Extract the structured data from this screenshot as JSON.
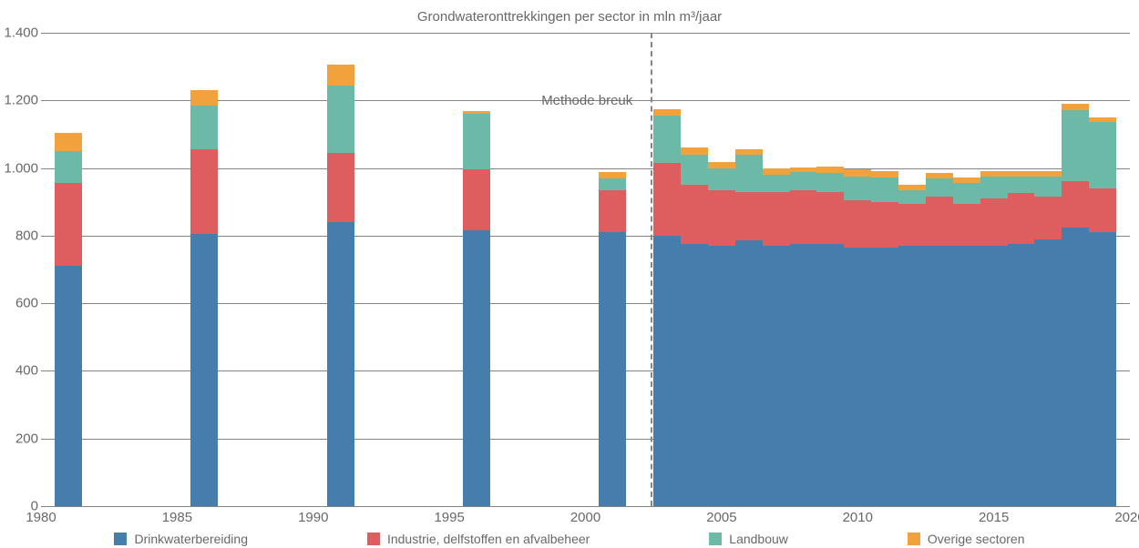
{
  "chart": {
    "type": "stacked-bar",
    "title": "Grondwateronttrekkingen per sector in mln m³/jaar",
    "title_fontsize": 15,
    "title_color": "#686868",
    "background_color": "#ffffff",
    "grid_color": "#848484",
    "axis_label_color": "#686868",
    "axis_label_fontsize": 15,
    "ylim": [
      0,
      1400
    ],
    "yticks": [
      0,
      200,
      400,
      600,
      800,
      1000,
      1200,
      1400
    ],
    "ytick_labels": [
      "0",
      "200",
      "400",
      "600",
      "800",
      "1.000",
      "1.200",
      "1.400"
    ],
    "xlim": [
      1980,
      2020
    ],
    "xticks": [
      1980,
      1985,
      1990,
      1995,
      2000,
      2005,
      2010,
      2015,
      2020
    ],
    "xtick_labels": [
      "1980",
      "1985",
      "1990",
      "1995",
      "2000",
      "2005",
      "2010",
      "2015",
      "2020"
    ],
    "bar_width_years": 1.0,
    "method_break": {
      "x": 2002.4,
      "label": "Methode breuk",
      "dash": true,
      "color": "#868686"
    },
    "series": [
      {
        "key": "drink",
        "label": "Drinkwaterbereiding",
        "color": "#457dac"
      },
      {
        "key": "indust",
        "label": "Industrie, delfstoffen en afvalbeheer",
        "color": "#de5e5f"
      },
      {
        "key": "land",
        "label": "Landbouw",
        "color": "#6db9a7"
      },
      {
        "key": "overig",
        "label": "Overige sectoren",
        "color": "#f1a23c"
      }
    ],
    "bars": [
      {
        "x": 1981,
        "drink": 710,
        "indust": 245,
        "land": 95,
        "overig": 55
      },
      {
        "x": 1986,
        "drink": 805,
        "indust": 250,
        "land": 130,
        "overig": 45
      },
      {
        "x": 1991,
        "drink": 840,
        "indust": 205,
        "land": 200,
        "overig": 60
      },
      {
        "x": 1996,
        "drink": 815,
        "indust": 180,
        "land": 165,
        "overig": 8
      },
      {
        "x": 2001,
        "drink": 810,
        "indust": 125,
        "land": 35,
        "overig": 18
      },
      {
        "x": 2003,
        "drink": 800,
        "indust": 215,
        "land": 140,
        "overig": 20
      },
      {
        "x": 2004,
        "drink": 775,
        "indust": 175,
        "land": 90,
        "overig": 20
      },
      {
        "x": 2005,
        "drink": 770,
        "indust": 165,
        "land": 65,
        "overig": 18
      },
      {
        "x": 2006,
        "drink": 785,
        "indust": 145,
        "land": 110,
        "overig": 15
      },
      {
        "x": 2007,
        "drink": 770,
        "indust": 160,
        "land": 50,
        "overig": 18
      },
      {
        "x": 2008,
        "drink": 775,
        "indust": 160,
        "land": 52,
        "overig": 15
      },
      {
        "x": 2009,
        "drink": 775,
        "indust": 155,
        "land": 55,
        "overig": 18
      },
      {
        "x": 2010,
        "drink": 765,
        "indust": 140,
        "land": 70,
        "overig": 20
      },
      {
        "x": 2011,
        "drink": 765,
        "indust": 135,
        "land": 72,
        "overig": 18
      },
      {
        "x": 2012,
        "drink": 770,
        "indust": 125,
        "land": 40,
        "overig": 15
      },
      {
        "x": 2013,
        "drink": 770,
        "indust": 145,
        "land": 55,
        "overig": 15
      },
      {
        "x": 2014,
        "drink": 770,
        "indust": 125,
        "land": 62,
        "overig": 15
      },
      {
        "x": 2015,
        "drink": 770,
        "indust": 140,
        "land": 65,
        "overig": 15
      },
      {
        "x": 2016,
        "drink": 775,
        "indust": 150,
        "land": 50,
        "overig": 15
      },
      {
        "x": 2017,
        "drink": 790,
        "indust": 125,
        "land": 60,
        "overig": 15
      },
      {
        "x": 2018,
        "drink": 825,
        "indust": 135,
        "land": 210,
        "overig": 20
      },
      {
        "x": 2019,
        "drink": 810,
        "indust": 130,
        "land": 195,
        "overig": 15
      }
    ]
  }
}
